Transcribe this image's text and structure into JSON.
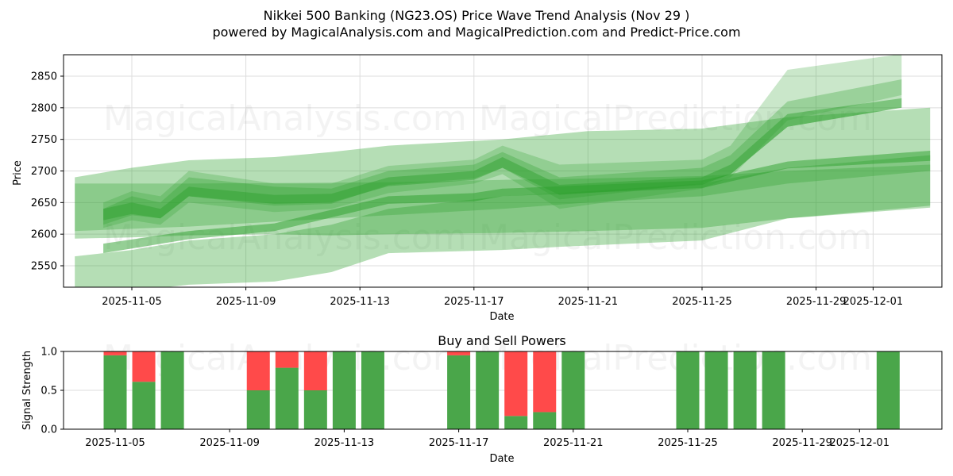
{
  "header": {
    "title": "Nikkei 500 Banking (NG23.OS) Price Wave Trend Analysis (Nov 29 )",
    "subtitle": "powered by MagicalAnalysis.com and MagicalPrediction.com and Predict-Price.com"
  },
  "watermarks": [
    "MagicalAnalysis.com",
    "MagicalPrediction.com"
  ],
  "colors": {
    "band": "#2ca02c",
    "buy": "#4aa64a",
    "sell": "#ff4a4a",
    "grid": "#dddddd"
  },
  "chart_data": [
    {
      "type": "area",
      "title": "Price Wave Trend Analysis",
      "xlabel": "Date",
      "ylabel": "Price",
      "ylim": [
        2516,
        2884
      ],
      "grid": true,
      "x_ticks": [
        "2025-11-05",
        "2025-11-09",
        "2025-11-13",
        "2025-11-17",
        "2025-11-21",
        "2025-11-25",
        "2025-11-29",
        "2025-12-01"
      ],
      "y_ticks": [
        2550,
        2600,
        2650,
        2700,
        2750,
        2800,
        2850
      ],
      "bands": [
        {
          "name": "wide-upper",
          "opacity": 0.35,
          "x": [
            "2025-11-03",
            "2025-11-05",
            "2025-11-07",
            "2025-11-10",
            "2025-11-12",
            "2025-11-14",
            "2025-11-18",
            "2025-11-21",
            "2025-11-25",
            "2025-11-28",
            "2025-12-03"
          ],
          "upper": [
            2690,
            2705,
            2717,
            2722,
            2730,
            2740,
            2750,
            2763,
            2767,
            2785,
            2800
          ],
          "lower": [
            2593,
            2595,
            2598,
            2600,
            2598,
            2600,
            2602,
            2605,
            2610,
            2625,
            2645
          ]
        },
        {
          "name": "wide-lower",
          "opacity": 0.35,
          "x": [
            "2025-11-03",
            "2025-11-05",
            "2025-11-07",
            "2025-11-10",
            "2025-11-12",
            "2025-11-14",
            "2025-11-18",
            "2025-11-20",
            "2025-11-25",
            "2025-11-28",
            "2025-12-03"
          ],
          "upper": [
            2565,
            2575,
            2590,
            2600,
            2615,
            2640,
            2660,
            2665,
            2680,
            2705,
            2725
          ],
          "lower": [
            2500,
            2510,
            2520,
            2525,
            2540,
            2570,
            2575,
            2580,
            2590,
            2625,
            2642
          ]
        },
        {
          "name": "mid-block",
          "opacity": 0.3,
          "x": [
            "2025-11-03",
            "2025-11-07",
            "2025-11-14",
            "2025-11-18",
            "2025-11-21",
            "2025-11-25",
            "2025-11-28",
            "2025-12-03"
          ],
          "upper": [
            2680,
            2680,
            2682,
            2686,
            2688,
            2692,
            2700,
            2710
          ],
          "lower": [
            2605,
            2612,
            2630,
            2640,
            2650,
            2660,
            2680,
            2700
          ]
        },
        {
          "name": "rally-1",
          "opacity": 0.25,
          "x": [
            "2025-11-04",
            "2025-11-05",
            "2025-11-06",
            "2025-11-07",
            "2025-11-10",
            "2025-11-12",
            "2025-11-14",
            "2025-11-17",
            "2025-11-18",
            "2025-11-20",
            "2025-11-25",
            "2025-11-26",
            "2025-11-28",
            "2025-12-02"
          ],
          "upper": [
            2650,
            2668,
            2660,
            2700,
            2680,
            2680,
            2708,
            2718,
            2740,
            2710,
            2718,
            2740,
            2860,
            2885
          ],
          "lower": [
            2610,
            2622,
            2615,
            2650,
            2635,
            2640,
            2665,
            2680,
            2695,
            2640,
            2672,
            2690,
            2780,
            2820
          ]
        },
        {
          "name": "rally-2",
          "opacity": 0.3,
          "x": [
            "2025-11-04",
            "2025-11-05",
            "2025-11-06",
            "2025-11-07",
            "2025-11-10",
            "2025-11-12",
            "2025-11-14",
            "2025-11-17",
            "2025-11-18",
            "2025-11-20",
            "2025-11-25",
            "2025-11-26",
            "2025-11-28",
            "2025-12-02"
          ],
          "upper": [
            2640,
            2660,
            2650,
            2690,
            2675,
            2672,
            2700,
            2710,
            2730,
            2690,
            2705,
            2725,
            2810,
            2845
          ],
          "lower": [
            2615,
            2630,
            2625,
            2660,
            2645,
            2648,
            2678,
            2688,
            2705,
            2655,
            2680,
            2695,
            2770,
            2800
          ]
        },
        {
          "name": "core",
          "opacity": 0.45,
          "x": [
            "2025-11-04",
            "2025-11-05",
            "2025-11-06",
            "2025-11-07",
            "2025-11-10",
            "2025-11-12",
            "2025-11-14",
            "2025-11-17",
            "2025-11-18",
            "2025-11-20",
            "2025-11-25",
            "2025-11-26",
            "2025-11-28",
            "2025-12-02"
          ],
          "upper": [
            2640,
            2650,
            2640,
            2675,
            2662,
            2664,
            2690,
            2700,
            2722,
            2678,
            2690,
            2710,
            2790,
            2815
          ],
          "lower": [
            2622,
            2632,
            2625,
            2660,
            2648,
            2650,
            2676,
            2686,
            2705,
            2662,
            2678,
            2695,
            2770,
            2800
          ]
        },
        {
          "name": "trend-line",
          "opacity": 0.5,
          "x": [
            "2025-11-04",
            "2025-11-07",
            "2025-11-10",
            "2025-11-14",
            "2025-11-17",
            "2025-11-18",
            "2025-11-25",
            "2025-11-28",
            "2025-12-03"
          ],
          "upper": [
            2585,
            2605,
            2617,
            2660,
            2665,
            2672,
            2685,
            2715,
            2732
          ],
          "lower": [
            2570,
            2592,
            2605,
            2648,
            2652,
            2660,
            2673,
            2704,
            2716
          ]
        }
      ]
    },
    {
      "type": "bar",
      "title": "Buy and Sell Powers",
      "xlabel": "Date",
      "ylabel": "Signal Strength",
      "ylim": [
        0,
        1
      ],
      "y_ticks": [
        "0.0",
        "0.5",
        "1.0"
      ],
      "x_ticks": [
        "2025-11-05",
        "2025-11-09",
        "2025-11-13",
        "2025-11-17",
        "2025-11-21",
        "2025-11-25",
        "2025-11-29",
        "2025-12-01"
      ],
      "categories": [
        "2025-11-05",
        "2025-11-06",
        "2025-11-07",
        "2025-11-10",
        "2025-11-11",
        "2025-11-12",
        "2025-11-13",
        "2025-11-14",
        "2025-11-17",
        "2025-11-18",
        "2025-11-19",
        "2025-11-20",
        "2025-11-21",
        "2025-11-25",
        "2025-11-26",
        "2025-11-27",
        "2025-11-28",
        "2025-12-02"
      ],
      "series": [
        {
          "name": "Buy",
          "color": "#4aa64a",
          "values": [
            0.95,
            0.61,
            1.0,
            0.5,
            0.79,
            0.5,
            1.0,
            1.0,
            0.95,
            1.0,
            0.17,
            0.22,
            1.0,
            1.0,
            1.0,
            1.0,
            1.0,
            1.0
          ]
        },
        {
          "name": "Sell",
          "color": "#ff4a4a",
          "values": [
            0.05,
            0.39,
            0.0,
            0.5,
            0.21,
            0.5,
            0.0,
            0.0,
            0.05,
            0.0,
            0.83,
            0.78,
            0.0,
            0.0,
            0.0,
            0.0,
            0.0,
            0.0
          ]
        }
      ]
    }
  ]
}
